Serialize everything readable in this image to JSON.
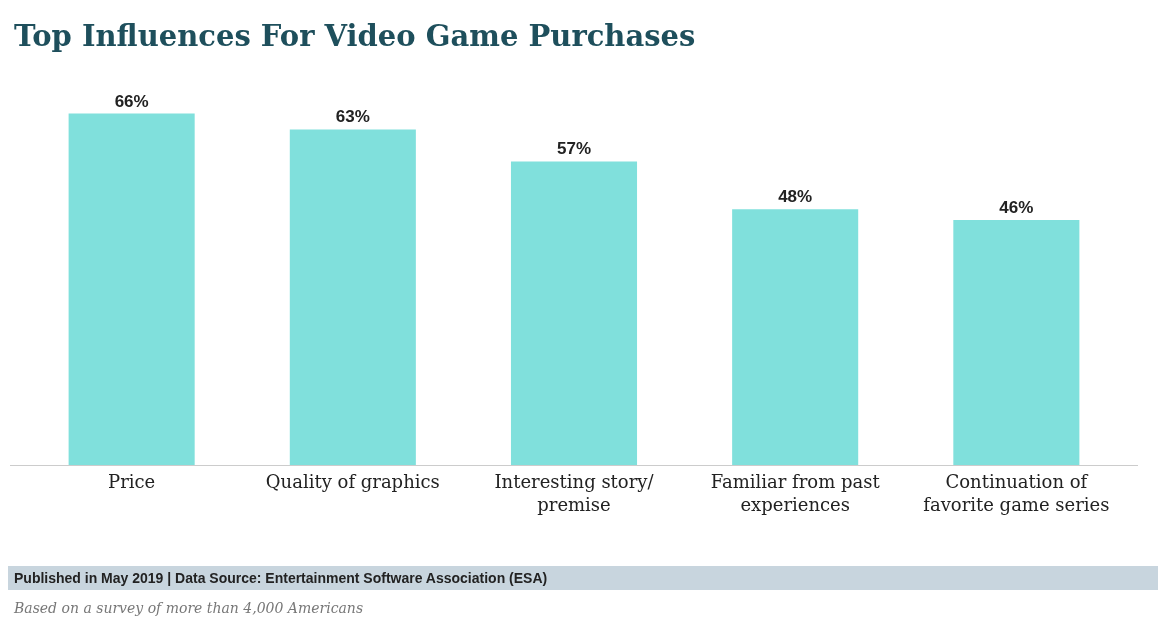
{
  "chart_data": {
    "type": "bar",
    "title": "Top Influences For Video Game Purchases",
    "categories": [
      "Price",
      "Quality of graphics",
      "Interesting story/\npremise",
      "Familiar from past\nexperiences",
      "Continuation of\nfavorite game series"
    ],
    "values": [
      66,
      63,
      57,
      48,
      46
    ],
    "value_labels": [
      "66%",
      "63%",
      "57%",
      "48%",
      "46%"
    ],
    "color": "#80e0dc",
    "grid": false,
    "annotations": [
      "Published in May 2019 | Data Source: Entertainment Software Association (ESA)",
      "Based on a survey of more than 4,000 Americans"
    ]
  }
}
